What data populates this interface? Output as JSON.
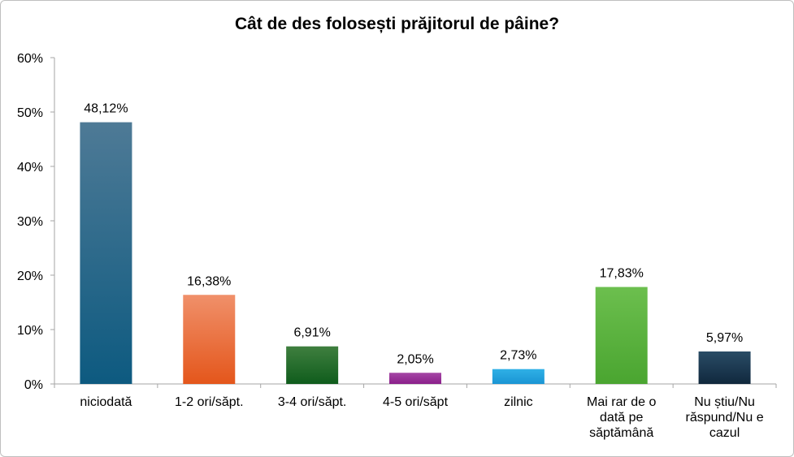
{
  "chart_data": {
    "type": "bar",
    "title": "Cât de des folosești prăjitorul de pâine?",
    "categories": [
      [
        "niciodată"
      ],
      [
        "1-2 ori/săpt."
      ],
      [
        "3-4 ori/săpt."
      ],
      [
        "4-5 ori/săpt"
      ],
      [
        "zilnic"
      ],
      [
        "Mai rar de o",
        "dată pe",
        "săptămână"
      ],
      [
        "Nu știu/Nu",
        "răspund/Nu e",
        "cazul"
      ]
    ],
    "values": [
      48.12,
      16.38,
      6.91,
      2.05,
      2.73,
      17.83,
      5.97
    ],
    "value_labels": [
      "48,12%",
      "16,38%",
      "6,91%",
      "2,05%",
      "2,73%",
      "17,83%",
      "5,97%"
    ],
    "ylim": [
      0,
      60
    ],
    "yticks": [
      "0%",
      "10%",
      "20%",
      "30%",
      "40%",
      "50%",
      "60%"
    ],
    "grid": false,
    "xlabel": "",
    "ylabel": "",
    "colors": [
      [
        "#4e7a96",
        "#0d5a80"
      ],
      [
        "#f0906a",
        "#e4561b"
      ],
      [
        "#3f7f3f",
        "#0f5c1c"
      ],
      [
        "#a546a5",
        "#8a1f8a"
      ],
      [
        "#2fb0e6",
        "#1a95d4"
      ],
      [
        "#6cbf4e",
        "#4aa530"
      ],
      [
        "#2a4c66",
        "#10283d"
      ]
    ]
  }
}
